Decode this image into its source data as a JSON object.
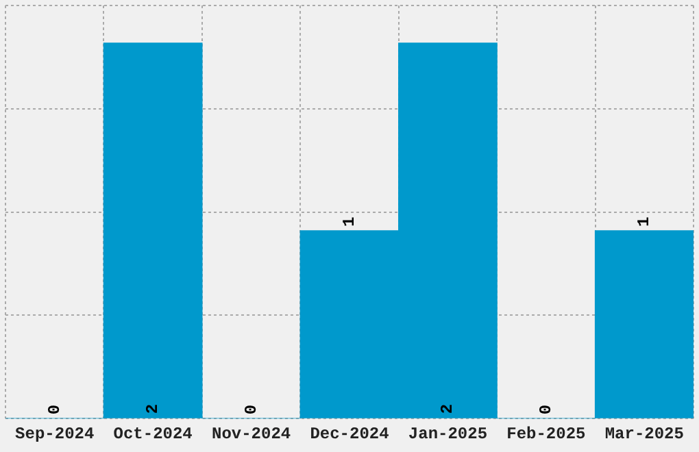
{
  "chart_data": {
    "type": "bar",
    "categories": [
      "Sep-2024",
      "Oct-2024",
      "Nov-2024",
      "Dec-2024",
      "Jan-2025",
      "Feb-2025",
      "Mar-2025"
    ],
    "values": [
      0,
      2,
      0,
      1,
      2,
      0,
      1
    ],
    "color": "#0099cc",
    "ylim": [
      0,
      2.2
    ],
    "yticks": [
      {
        "value": 0,
        "label": null
      },
      {
        "value": 0.55,
        "label": null
      },
      {
        "value": 1.1,
        "label": null
      },
      {
        "value": 1.65,
        "label": null
      },
      {
        "value": 2.2,
        "label": null
      }
    ],
    "grid": true,
    "data_labels": true,
    "tick_labels": "x"
  }
}
